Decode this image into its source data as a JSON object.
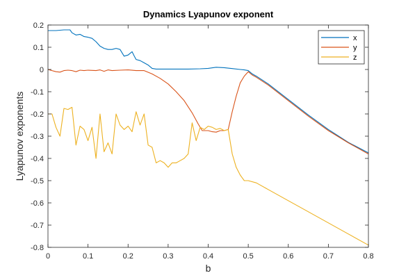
{
  "chart_data": {
    "type": "line",
    "title": "Dynamics Lyapunov exponent",
    "xlabel": "b",
    "ylabel": "Lyapunov exponents",
    "xlim": [
      0,
      0.8
    ],
    "ylim": [
      -0.8,
      0.2
    ],
    "xticks": [
      0,
      0.1,
      0.2,
      0.3,
      0.4,
      0.5,
      0.6,
      0.7,
      0.8
    ],
    "xtick_labels": [
      "0",
      "0.1",
      "0.2",
      "0.3",
      "0.4",
      "0.5",
      "0.6",
      "0.7",
      "0.8"
    ],
    "yticks": [
      -0.8,
      -0.7,
      -0.6,
      -0.5,
      -0.4,
      -0.3,
      -0.2,
      -0.1,
      0,
      0.1,
      0.2
    ],
    "ytick_labels": [
      "-0.8",
      "-0.7",
      "-0.6",
      "-0.5",
      "-0.4",
      "-0.3",
      "-0.2",
      "-0.1",
      "0",
      "0.1",
      "0.2"
    ],
    "grid": false,
    "legend_position": "top-right",
    "series": [
      {
        "name": "x",
        "color": "#0072BD",
        "points": [
          [
            0,
            0.175
          ],
          [
            0.02,
            0.175
          ],
          [
            0.04,
            0.178
          ],
          [
            0.055,
            0.178
          ],
          [
            0.06,
            0.165
          ],
          [
            0.07,
            0.155
          ],
          [
            0.08,
            0.158
          ],
          [
            0.09,
            0.148
          ],
          [
            0.1,
            0.145
          ],
          [
            0.11,
            0.14
          ],
          [
            0.12,
            0.125
          ],
          [
            0.13,
            0.105
          ],
          [
            0.14,
            0.095
          ],
          [
            0.15,
            0.09
          ],
          [
            0.16,
            0.09
          ],
          [
            0.17,
            0.095
          ],
          [
            0.18,
            0.09
          ],
          [
            0.19,
            0.06
          ],
          [
            0.2,
            0.065
          ],
          [
            0.21,
            0.08
          ],
          [
            0.215,
            0.062
          ],
          [
            0.22,
            0.045
          ],
          [
            0.23,
            0.04
          ],
          [
            0.24,
            0.03
          ],
          [
            0.25,
            0.02
          ],
          [
            0.26,
            0.005
          ],
          [
            0.27,
            0.002
          ],
          [
            0.3,
            0.002
          ],
          [
            0.35,
            0.002
          ],
          [
            0.38,
            0.003
          ],
          [
            0.4,
            0.005
          ],
          [
            0.42,
            0.01
          ],
          [
            0.44,
            0.008
          ],
          [
            0.46,
            0.004
          ],
          [
            0.48,
            0.0
          ],
          [
            0.49,
            -0.002
          ],
          [
            0.5,
            -0.005
          ],
          [
            0.51,
            -0.02
          ],
          [
            0.52,
            -0.03
          ],
          [
            0.55,
            -0.065
          ],
          [
            0.6,
            -0.135
          ],
          [
            0.65,
            -0.205
          ],
          [
            0.7,
            -0.27
          ],
          [
            0.75,
            -0.328
          ],
          [
            0.8,
            -0.375
          ]
        ]
      },
      {
        "name": "y",
        "color": "#D95319",
        "points": [
          [
            0,
            0.0
          ],
          [
            0.01,
            -0.005
          ],
          [
            0.02,
            -0.01
          ],
          [
            0.03,
            -0.012
          ],
          [
            0.04,
            -0.005
          ],
          [
            0.05,
            -0.003
          ],
          [
            0.06,
            -0.005
          ],
          [
            0.07,
            -0.01
          ],
          [
            0.08,
            -0.003
          ],
          [
            0.09,
            -0.005
          ],
          [
            0.1,
            -0.003
          ],
          [
            0.12,
            -0.005
          ],
          [
            0.13,
            -0.002
          ],
          [
            0.14,
            -0.008
          ],
          [
            0.15,
            -0.002
          ],
          [
            0.16,
            -0.005
          ],
          [
            0.18,
            -0.003
          ],
          [
            0.2,
            -0.002
          ],
          [
            0.22,
            -0.005
          ],
          [
            0.24,
            -0.005
          ],
          [
            0.26,
            -0.02
          ],
          [
            0.28,
            -0.04
          ],
          [
            0.3,
            -0.065
          ],
          [
            0.32,
            -0.1
          ],
          [
            0.34,
            -0.14
          ],
          [
            0.36,
            -0.195
          ],
          [
            0.375,
            -0.245
          ],
          [
            0.385,
            -0.275
          ],
          [
            0.4,
            -0.275
          ],
          [
            0.41,
            -0.28
          ],
          [
            0.42,
            -0.282
          ],
          [
            0.43,
            -0.275
          ],
          [
            0.44,
            -0.275
          ],
          [
            0.45,
            -0.27
          ],
          [
            0.46,
            -0.19
          ],
          [
            0.47,
            -0.12
          ],
          [
            0.48,
            -0.06
          ],
          [
            0.49,
            -0.03
          ],
          [
            0.5,
            -0.01
          ],
          [
            0.51,
            -0.025
          ],
          [
            0.52,
            -0.035
          ],
          [
            0.55,
            -0.07
          ],
          [
            0.6,
            -0.14
          ],
          [
            0.65,
            -0.21
          ],
          [
            0.7,
            -0.275
          ],
          [
            0.75,
            -0.33
          ],
          [
            0.8,
            -0.38
          ]
        ]
      },
      {
        "name": "z",
        "color": "#EDB120",
        "points": [
          [
            0,
            -0.2
          ],
          [
            0.01,
            -0.2
          ],
          [
            0.02,
            -0.26
          ],
          [
            0.03,
            -0.3
          ],
          [
            0.04,
            -0.175
          ],
          [
            0.05,
            -0.18
          ],
          [
            0.06,
            -0.17
          ],
          [
            0.07,
            -0.34
          ],
          [
            0.08,
            -0.255
          ],
          [
            0.09,
            -0.27
          ],
          [
            0.1,
            -0.32
          ],
          [
            0.11,
            -0.26
          ],
          [
            0.12,
            -0.4
          ],
          [
            0.13,
            -0.2
          ],
          [
            0.14,
            -0.37
          ],
          [
            0.15,
            -0.33
          ],
          [
            0.16,
            -0.38
          ],
          [
            0.17,
            -0.2
          ],
          [
            0.18,
            -0.25
          ],
          [
            0.19,
            -0.27
          ],
          [
            0.2,
            -0.255
          ],
          [
            0.21,
            -0.28
          ],
          [
            0.22,
            -0.19
          ],
          [
            0.23,
            -0.25
          ],
          [
            0.24,
            -0.2
          ],
          [
            0.25,
            -0.34
          ],
          [
            0.26,
            -0.35
          ],
          [
            0.27,
            -0.42
          ],
          [
            0.28,
            -0.41
          ],
          [
            0.29,
            -0.42
          ],
          [
            0.3,
            -0.44
          ],
          [
            0.31,
            -0.42
          ],
          [
            0.32,
            -0.42
          ],
          [
            0.33,
            -0.41
          ],
          [
            0.34,
            -0.4
          ],
          [
            0.35,
            -0.38
          ],
          [
            0.36,
            -0.24
          ],
          [
            0.37,
            -0.32
          ],
          [
            0.38,
            -0.26
          ],
          [
            0.39,
            -0.27
          ],
          [
            0.4,
            -0.255
          ],
          [
            0.41,
            -0.26
          ],
          [
            0.42,
            -0.27
          ],
          [
            0.43,
            -0.265
          ],
          [
            0.44,
            -0.275
          ],
          [
            0.45,
            -0.27
          ],
          [
            0.46,
            -0.38
          ],
          [
            0.47,
            -0.44
          ],
          [
            0.48,
            -0.475
          ],
          [
            0.49,
            -0.5
          ],
          [
            0.5,
            -0.5
          ],
          [
            0.52,
            -0.51
          ],
          [
            0.55,
            -0.54
          ],
          [
            0.6,
            -0.59
          ],
          [
            0.65,
            -0.64
          ],
          [
            0.7,
            -0.69
          ],
          [
            0.75,
            -0.74
          ],
          [
            0.8,
            -0.79
          ]
        ]
      }
    ]
  }
}
